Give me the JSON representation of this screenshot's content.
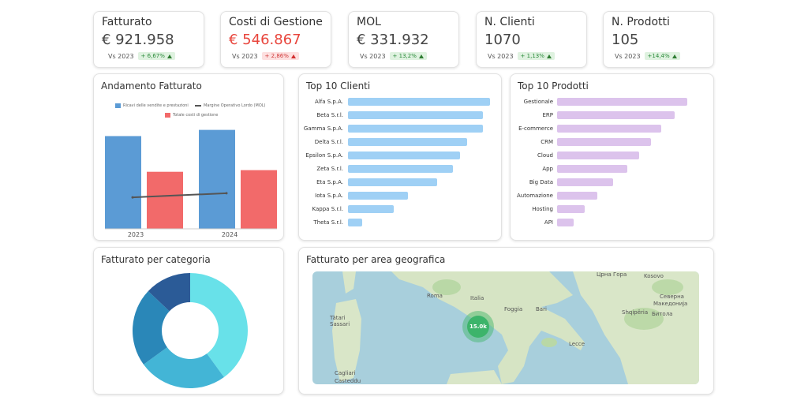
{
  "kpis": [
    {
      "title": "Fatturato",
      "value": "€ 921.958",
      "vs_label": "Vs 2023",
      "delta": "+ 6,67%",
      "trend": "up",
      "color": "green"
    },
    {
      "title": "Costi di Gestione",
      "value": "€ 546.867",
      "vs_label": "Vs 2023",
      "delta": "+ 2,86%",
      "trend": "up",
      "color": "red"
    },
    {
      "title": "MOL",
      "value": "€ 331.932",
      "vs_label": "Vs 2023",
      "delta": "+ 13,2%",
      "trend": "up",
      "color": "green"
    },
    {
      "title": "N. Clienti",
      "value": "1070",
      "vs_label": "Vs 2023",
      "delta": "+ 1,13%",
      "trend": "up",
      "color": "green"
    },
    {
      "title": "N. Prodotti",
      "value": "105",
      "vs_label": "Vs 2023",
      "delta": "+14,4%",
      "trend": "up",
      "color": "green"
    }
  ],
  "andamento": {
    "title": "Andamento Fatturato",
    "chart_data": {
      "type": "bar",
      "categories": [
        "2023",
        "2024"
      ],
      "series": [
        {
          "name": "Ricavi delle vendite e prestazioni",
          "values": [
            864300,
            921958
          ],
          "color": "#5b9bd5"
        },
        {
          "name": "Totale costi di gestione",
          "values": [
            531700,
            546867
          ],
          "color": "#f26a6a"
        },
        {
          "name": "Margine Operativo Lordo (MOL)",
          "type": "line",
          "values": [
            293000,
            331932
          ],
          "color": "#555555"
        }
      ]
    }
  },
  "top_clienti": {
    "title": "Top 10 Clienti",
    "chart_data": {
      "type": "bar",
      "orientation": "horizontal",
      "categories": [
        "Alfa S.p.A.",
        "Beta S.r.l.",
        "Gamma S.p.A.",
        "Delta S.r.l.",
        "Epsilon S.p.A.",
        "Zeta S.r.l.",
        "Eta S.p.A.",
        "Iota S.p.A.",
        "Kappa S.r.l.",
        "Theta S.r.l."
      ],
      "values": [
        100,
        95,
        95,
        84,
        79,
        74,
        63,
        42,
        32,
        10
      ],
      "color": "#9fd0f5"
    }
  },
  "top_prodotti": {
    "title": "Top 10 Prodotti",
    "chart_data": {
      "type": "bar",
      "orientation": "horizontal",
      "categories": [
        "Gestionale",
        "ERP",
        "E-commerce",
        "CRM",
        "Cloud",
        "App",
        "Big Data",
        "Automazione",
        "Hosting",
        "API"
      ],
      "values": [
        100,
        90,
        80,
        72,
        63,
        54,
        43,
        31,
        21,
        13
      ],
      "color": "#dcc3ec"
    }
  },
  "categoria": {
    "title": "Fatturato per categoria",
    "chart_data": {
      "type": "pie",
      "donut": true,
      "values": [
        40,
        25,
        22,
        13
      ],
      "colors": [
        "#68e1e9",
        "#43b5d6",
        "#2a87b8",
        "#2b5b97"
      ]
    }
  },
  "geo": {
    "title": "Fatturato per area geografica",
    "cluster_value": "15.0k",
    "labels": {
      "roma": "Roma",
      "italia": "Italia",
      "bari": "Bari",
      "foggia": "Foggia",
      "lecce": "Lecce",
      "sassari": "Sassari",
      "tàttari": "Tàtari",
      "cagliari": "Cagliari",
      "casteddu": "Casteddu",
      "kosovo": "Kosovo",
      "makedonija": "Македонија",
      "severna": "Северна",
      "shqiperia": "Shqipëria",
      "bitola": "Битола",
      "crna_gora": "Црна Гора"
    }
  }
}
